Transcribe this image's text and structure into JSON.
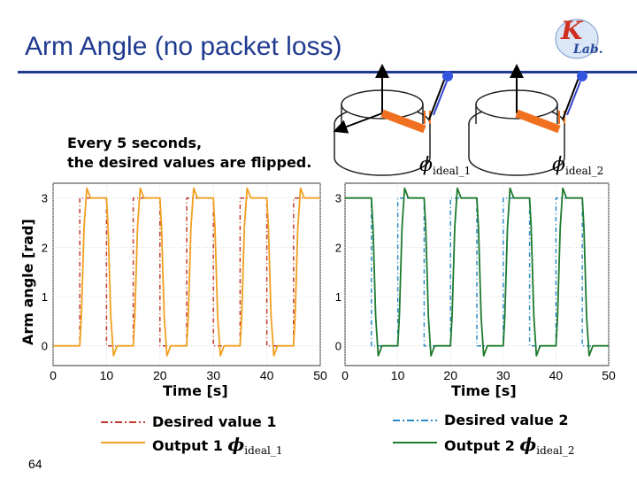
{
  "slide": {
    "title": "Arm Angle (no packet loss)",
    "note_line1": "Every 5 seconds,",
    "note_line2": "the desired values are flipped.",
    "page_number": "64",
    "logo_letters": "KLab."
  },
  "symbols": {
    "phi": "ϕ",
    "ideal_1": "ideal_1",
    "ideal_2": "ideal_2"
  },
  "colors": {
    "title": "#1f3a8f",
    "desired_1": "#c0392b",
    "output_1": "#f0a020",
    "desired_2": "#2a8ac8",
    "output_2": "#1e7a2e",
    "arm": "#f07020"
  },
  "chart_data": [
    {
      "type": "line",
      "xlabel": "Time [s]",
      "ylabel": "Arm angle [rad]",
      "xlim": [
        0,
        50
      ],
      "ylim": [
        -0.4,
        3.3
      ],
      "xticks": [
        "0",
        "10",
        "20",
        "30",
        "40",
        "50"
      ],
      "yticks": [
        "0",
        "1",
        "2",
        "3"
      ],
      "grid": true,
      "legend_position": "bottom",
      "series": [
        {
          "name": "Desired value 1",
          "style": "dash-dot",
          "x": [
            0,
            5,
            5,
            10,
            10,
            15,
            15,
            20,
            20,
            25,
            25,
            30,
            30,
            35,
            35,
            40,
            40,
            45,
            45,
            50
          ],
          "y": [
            0,
            0,
            3.0,
            3.0,
            0,
            0,
            3.0,
            3.0,
            0,
            0,
            3.0,
            3.0,
            0,
            0,
            3.0,
            3.0,
            0,
            0,
            3.0,
            3.0
          ]
        },
        {
          "name": "Output 1",
          "style": "solid",
          "x": [
            0,
            5.0,
            5.3,
            5.8,
            6.3,
            7,
            10.0,
            10.3,
            10.8,
            11.3,
            12,
            15.0,
            15.3,
            15.8,
            16.3,
            17,
            20.0,
            20.3,
            20.8,
            21.3,
            22,
            25.0,
            25.3,
            25.8,
            26.3,
            27,
            30.0,
            30.3,
            30.8,
            31.3,
            32,
            35.0,
            35.3,
            35.8,
            36.3,
            37,
            40.0,
            40.3,
            40.8,
            41.3,
            42,
            45.0,
            45.3,
            45.8,
            46.3,
            47,
            50
          ],
          "y": [
            0,
            0,
            0.6,
            2.4,
            3.2,
            3.0,
            3.0,
            2.4,
            0.6,
            -0.2,
            0,
            0,
            0.6,
            2.4,
            3.2,
            3.0,
            3.0,
            2.4,
            0.6,
            -0.2,
            0,
            0,
            0.6,
            2.4,
            3.2,
            3.0,
            3.0,
            2.4,
            0.6,
            -0.2,
            0,
            0,
            0.6,
            2.4,
            3.2,
            3.0,
            3.0,
            2.4,
            0.6,
            -0.2,
            0,
            0,
            0.6,
            2.4,
            3.2,
            3.0,
            3.0
          ]
        }
      ]
    },
    {
      "type": "line",
      "xlabel": "Time [s]",
      "ylabel": "",
      "xlim": [
        0,
        50
      ],
      "ylim": [
        -0.4,
        3.3
      ],
      "xticks": [
        "0",
        "10",
        "20",
        "30",
        "40",
        "50"
      ],
      "yticks": [
        "0",
        "1",
        "2",
        "3"
      ],
      "grid": true,
      "legend_position": "bottom",
      "series": [
        {
          "name": "Desired value 2",
          "style": "dash-dot",
          "x": [
            0,
            5,
            5,
            10,
            10,
            15,
            15,
            20,
            20,
            25,
            25,
            30,
            30,
            35,
            35,
            40,
            40,
            45,
            45,
            50
          ],
          "y": [
            3.0,
            3.0,
            0,
            0,
            3.0,
            3.0,
            0,
            0,
            3.0,
            3.0,
            0,
            0,
            3.0,
            3.0,
            0,
            0,
            3.0,
            3.0,
            0,
            0
          ]
        },
        {
          "name": "Output 2",
          "style": "solid",
          "x": [
            0,
            5.0,
            5.3,
            5.8,
            6.3,
            7,
            10.0,
            10.3,
            10.8,
            11.3,
            12,
            15.0,
            15.3,
            15.8,
            16.3,
            17,
            20.0,
            20.3,
            20.8,
            21.3,
            22,
            25.0,
            25.3,
            25.8,
            26.3,
            27,
            30.0,
            30.3,
            30.8,
            31.3,
            32,
            35.0,
            35.3,
            35.8,
            36.3,
            37,
            40.0,
            40.3,
            40.8,
            41.3,
            42,
            45.0,
            45.3,
            45.8,
            46.3,
            47,
            50
          ],
          "y": [
            3.0,
            3.0,
            2.4,
            0.6,
            -0.2,
            0,
            0,
            0.6,
            2.4,
            3.2,
            3.0,
            3.0,
            2.4,
            0.6,
            -0.2,
            0,
            0,
            0.6,
            2.4,
            3.2,
            3.0,
            3.0,
            2.4,
            0.6,
            -0.2,
            0,
            0,
            0.6,
            2.4,
            3.2,
            3.0,
            3.0,
            2.4,
            0.6,
            -0.2,
            0,
            0,
            0.6,
            2.4,
            3.2,
            3.0,
            3.0,
            2.4,
            0.6,
            -0.2,
            0,
            0
          ]
        }
      ]
    }
  ]
}
